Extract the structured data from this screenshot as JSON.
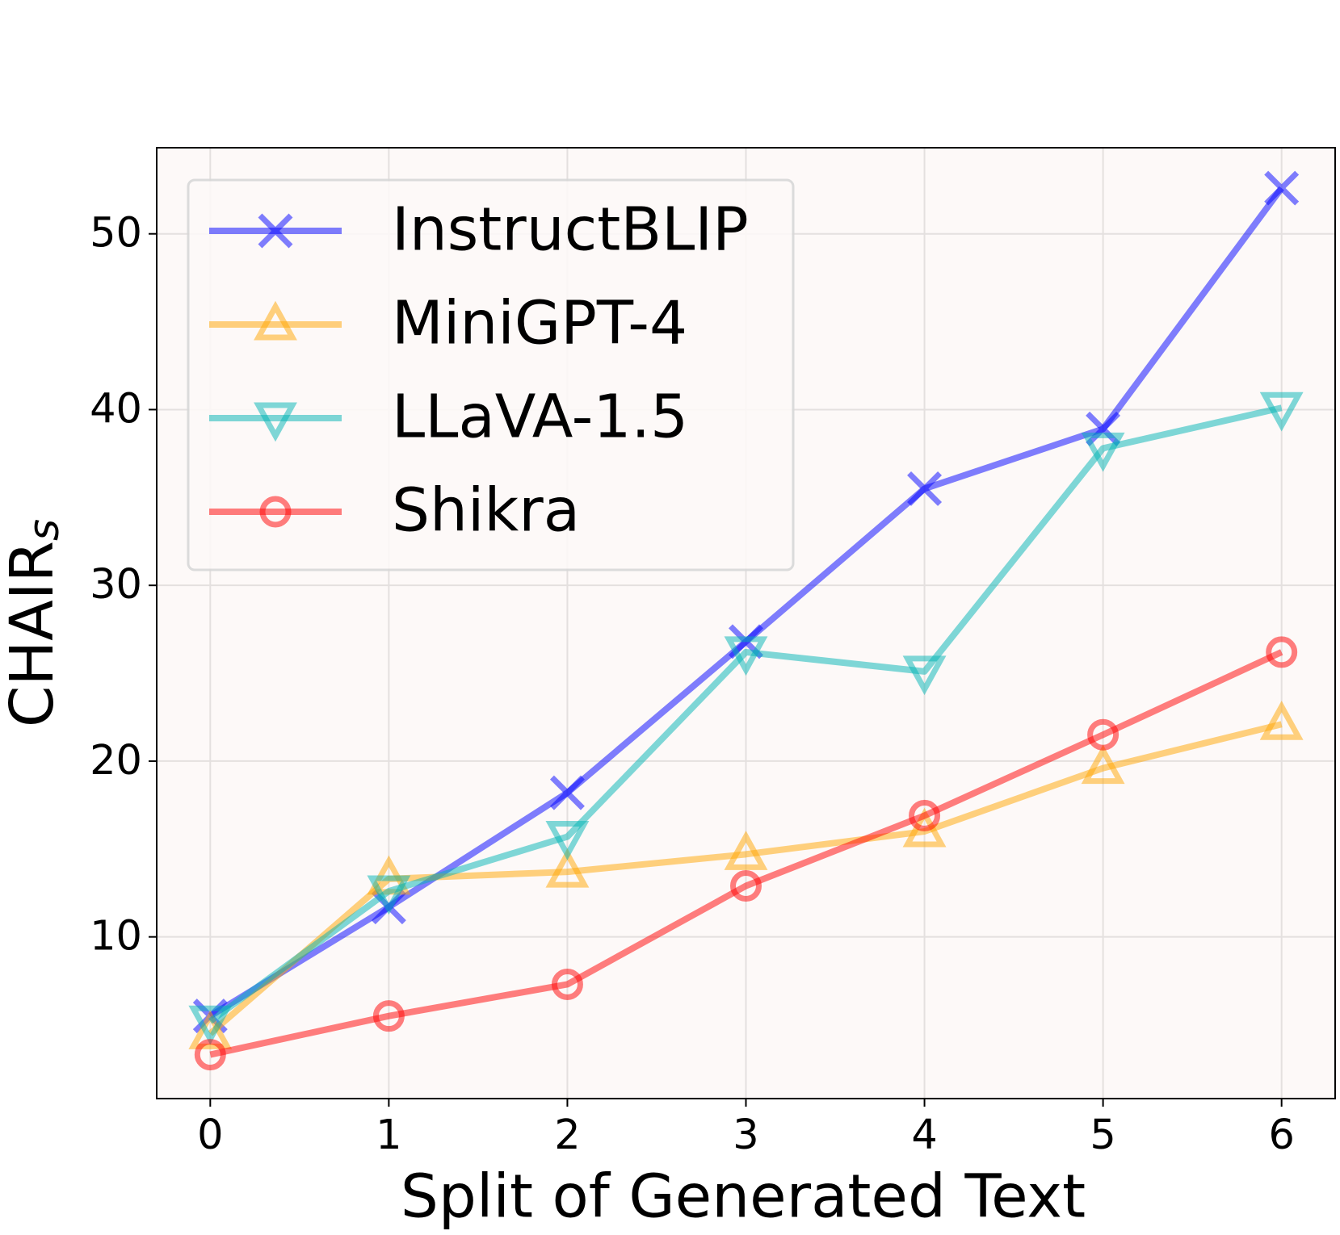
{
  "chart_data": {
    "type": "line",
    "xlabel": "Split of Generated Text",
    "ylabel": {
      "text": "CHAIR",
      "subscript": "s"
    },
    "x": [
      0,
      1,
      2,
      3,
      4,
      5,
      6
    ],
    "xlim": [
      -0.3,
      6.3
    ],
    "xticks": [
      0,
      1,
      2,
      3,
      4,
      5,
      6
    ],
    "ylim": [
      0.8,
      54.9
    ],
    "yticks": [
      10,
      20,
      30,
      40,
      50
    ],
    "grid": true,
    "legend": "upper left",
    "series": [
      {
        "name": "InstructBLIP",
        "color": "#0000ff",
        "marker": "x",
        "values": [
          5.5,
          11.7,
          18.2,
          26.8,
          35.5,
          38.9,
          52.6
        ]
      },
      {
        "name": "MiniGPT-4",
        "color": "#ffa500",
        "marker": "triangle-up",
        "values": [
          4.5,
          13.3,
          13.7,
          14.7,
          16.0,
          19.6,
          22.1
        ]
      },
      {
        "name": "LLaVA-1.5",
        "color": "#00b3b3",
        "marker": "triangle-down",
        "values": [
          5.2,
          12.6,
          15.7,
          26.2,
          25.1,
          37.8,
          40.1
        ]
      },
      {
        "name": "Shikra",
        "color": "#ff0000",
        "marker": "circle",
        "values": [
          3.3,
          5.5,
          7.3,
          12.9,
          16.9,
          21.5,
          26.2
        ]
      }
    ]
  }
}
